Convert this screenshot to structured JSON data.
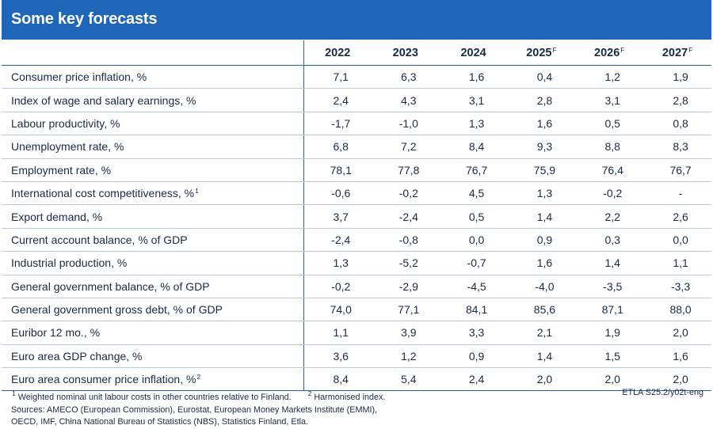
{
  "title": "Some key forecasts",
  "columns": [
    {
      "year": "2022",
      "sup": ""
    },
    {
      "year": "2023",
      "sup": ""
    },
    {
      "year": "2024",
      "sup": ""
    },
    {
      "year": "2025",
      "sup": "F"
    },
    {
      "year": "2026",
      "sup": "F"
    },
    {
      "year": "2027",
      "sup": "F"
    }
  ],
  "rows": [
    {
      "label": "Consumer price inflation, %",
      "sup": "",
      "values": [
        "7,1",
        "6,3",
        "1,6",
        "0,4",
        "1,2",
        "1,9"
      ]
    },
    {
      "label": "Index of wage and salary earnings, %",
      "sup": "",
      "values": [
        "2,4",
        "4,3",
        "3,1",
        "2,8",
        "3,1",
        "2,8"
      ]
    },
    {
      "label": "Labour productivity, %",
      "sup": "",
      "values": [
        "-1,7",
        "-1,0",
        "1,3",
        "1,6",
        "0,5",
        "0,8"
      ]
    },
    {
      "label": "Unemployment rate, %",
      "sup": "",
      "values": [
        "6,8",
        "7,2",
        "8,4",
        "9,3",
        "8,8",
        "8,3"
      ]
    },
    {
      "label": "Employment rate, %",
      "sup": "",
      "values": [
        "78,1",
        "77,8",
        "76,7",
        "75,9",
        "76,4",
        "76,7"
      ]
    },
    {
      "label": "International cost competitiveness, %",
      "sup": "1",
      "values": [
        "-0,6",
        "-0,2",
        "4,5",
        "1,3",
        "-0,2",
        "-"
      ]
    },
    {
      "label": "Export demand, %",
      "sup": "",
      "values": [
        "3,7",
        "-2,4",
        "0,5",
        "1,4",
        "2,2",
        "2,6"
      ]
    },
    {
      "label": "Current account balance, % of GDP",
      "sup": "",
      "values": [
        "-2,4",
        "-0,8",
        "0,0",
        "0,9",
        "0,3",
        "0,0"
      ]
    },
    {
      "label": "Industrial production, %",
      "sup": "",
      "values": [
        "1,3",
        "-5,2",
        "-0,7",
        "1,6",
        "1,4",
        "1,1"
      ]
    },
    {
      "label": "General government balance, % of GDP",
      "sup": "",
      "values": [
        "-0,2",
        "-2,9",
        "-4,5",
        "-4,0",
        "-3,5",
        "-3,3"
      ]
    },
    {
      "label": "General government gross debt, % of GDP",
      "sup": "",
      "values": [
        "74,0",
        "77,1",
        "84,1",
        "85,6",
        "87,1",
        "88,0"
      ]
    },
    {
      "label": "Euribor 12 mo., %",
      "sup": "",
      "values": [
        "1,1",
        "3,9",
        "3,3",
        "2,1",
        "1,9",
        "2,0"
      ]
    },
    {
      "label": "Euro area GDP change, %",
      "sup": "",
      "values": [
        "3,6",
        "1,2",
        "0,9",
        "1,4",
        "1,5",
        "1,6"
      ]
    },
    {
      "label": "Euro area consumer price inflation, %",
      "sup": "2",
      "values": [
        "8,4",
        "5,4",
        "2,4",
        "2,0",
        "2,0",
        "2,0"
      ]
    }
  ],
  "footnotes": {
    "note1_mark": "1",
    "note1_text": "Weighted nominal unit labour costs in other countries relative to Finland.",
    "note2_mark": "2",
    "note2_text": "Harmonised index.",
    "sources_line1": "Sources: AMECO (European Commission), Eurostat, European Money Markets Institute (EMMI),",
    "sources_line2": "OECD, IMF, China National Bureau of Statistics (NBS), Statistics Finland, Etla."
  },
  "source_code": "ETLA S25.2/y02t-eng"
}
